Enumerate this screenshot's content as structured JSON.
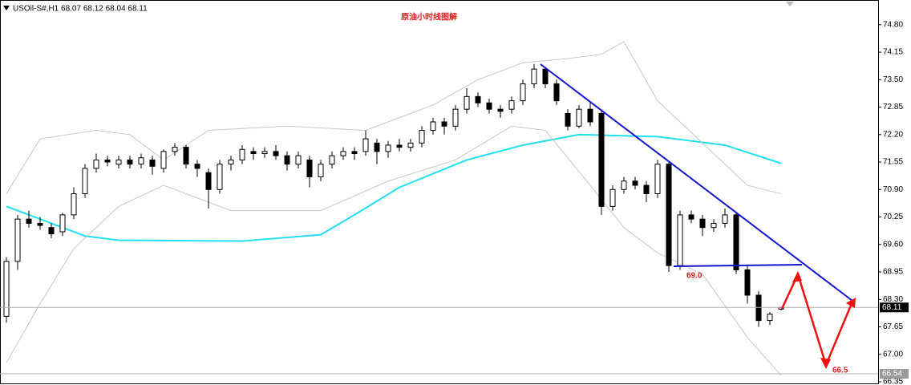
{
  "chart_data": {
    "type": "candlestick",
    "header": "USOil-S#,H1  68.07 68.12 68.04 68.11",
    "title": "原油小时线图解",
    "annotations": [
      "69.0",
      "66.5"
    ],
    "candles": [
      [
        67.9,
        69.3,
        67.75,
        69.2
      ],
      [
        69.2,
        70.3,
        69.0,
        70.2
      ],
      [
        70.2,
        70.4,
        70.0,
        70.1
      ],
      [
        70.1,
        70.25,
        69.95,
        70.05
      ],
      [
        70.0,
        70.1,
        69.75,
        69.85
      ],
      [
        69.9,
        70.35,
        69.8,
        70.3
      ],
      [
        70.3,
        70.95,
        70.2,
        70.8
      ],
      [
        70.8,
        71.5,
        70.7,
        71.4
      ],
      [
        71.4,
        71.75,
        71.3,
        71.6
      ],
      [
        71.6,
        71.7,
        71.45,
        71.55
      ],
      [
        71.5,
        71.7,
        71.4,
        71.6
      ],
      [
        71.6,
        71.7,
        71.4,
        71.5
      ],
      [
        71.5,
        71.75,
        71.4,
        71.65
      ],
      [
        71.6,
        71.7,
        71.25,
        71.45
      ],
      [
        71.4,
        71.85,
        71.3,
        71.8
      ],
      [
        71.8,
        72.0,
        71.7,
        71.9
      ],
      [
        71.9,
        71.95,
        71.4,
        71.5
      ],
      [
        71.5,
        71.6,
        71.2,
        71.4
      ],
      [
        71.3,
        71.4,
        70.45,
        70.9
      ],
      [
        70.9,
        71.6,
        70.8,
        71.5
      ],
      [
        71.5,
        71.7,
        71.35,
        71.6
      ],
      [
        71.6,
        71.95,
        71.5,
        71.85
      ],
      [
        71.8,
        71.9,
        71.6,
        71.75
      ],
      [
        71.75,
        71.9,
        71.65,
        71.8
      ],
      [
        71.8,
        71.95,
        71.6,
        71.7
      ],
      [
        71.7,
        71.8,
        71.35,
        71.5
      ],
      [
        71.5,
        71.8,
        71.4,
        71.7
      ],
      [
        71.6,
        71.7,
        70.95,
        71.2
      ],
      [
        71.2,
        71.6,
        71.1,
        71.5
      ],
      [
        71.5,
        71.8,
        71.4,
        71.7
      ],
      [
        71.7,
        71.9,
        71.6,
        71.8
      ],
      [
        71.8,
        71.9,
        71.6,
        71.75
      ],
      [
        71.8,
        72.3,
        71.7,
        72.1
      ],
      [
        72.0,
        72.1,
        71.5,
        71.8
      ],
      [
        71.8,
        72.05,
        71.65,
        71.95
      ],
      [
        71.95,
        72.1,
        71.8,
        71.9
      ],
      [
        71.9,
        72.1,
        71.8,
        72.0
      ],
      [
        72.0,
        72.4,
        71.9,
        72.3
      ],
      [
        72.3,
        72.6,
        72.2,
        72.5
      ],
      [
        72.5,
        72.6,
        72.2,
        72.4
      ],
      [
        72.4,
        72.9,
        72.3,
        72.8
      ],
      [
        72.8,
        73.3,
        72.7,
        73.1
      ],
      [
        73.1,
        73.2,
        72.85,
        72.95
      ],
      [
        72.95,
        73.05,
        72.7,
        72.8
      ],
      [
        72.8,
        72.9,
        72.6,
        72.75
      ],
      [
        72.8,
        73.1,
        72.7,
        73.0
      ],
      [
        73.0,
        73.5,
        72.9,
        73.4
      ],
      [
        73.4,
        73.87,
        73.3,
        73.75
      ],
      [
        73.75,
        73.8,
        73.3,
        73.4
      ],
      [
        73.4,
        73.5,
        72.9,
        73.0
      ],
      [
        72.7,
        72.8,
        72.3,
        72.4
      ],
      [
        72.4,
        72.9,
        72.35,
        72.8
      ],
      [
        72.8,
        72.95,
        72.4,
        72.5
      ],
      [
        72.7,
        72.8,
        70.3,
        70.5
      ],
      [
        70.5,
        71.0,
        70.4,
        70.9
      ],
      [
        70.9,
        71.2,
        70.8,
        71.1
      ],
      [
        71.1,
        71.2,
        70.9,
        71.0
      ],
      [
        71.0,
        71.1,
        70.6,
        70.8
      ],
      [
        70.8,
        71.6,
        70.7,
        71.5
      ],
      [
        71.5,
        71.55,
        68.95,
        69.1
      ],
      [
        69.1,
        70.4,
        69.0,
        70.3
      ],
      [
        70.3,
        70.4,
        70.1,
        70.2
      ],
      [
        70.2,
        70.3,
        69.8,
        70.0
      ],
      [
        70.0,
        70.2,
        69.9,
        70.1
      ],
      [
        70.1,
        70.45,
        70.0,
        70.3
      ],
      [
        70.3,
        70.35,
        68.9,
        69.0
      ],
      [
        69.0,
        69.1,
        68.2,
        68.4
      ],
      [
        68.4,
        68.5,
        67.65,
        67.8
      ],
      [
        67.8,
        68.0,
        67.7,
        67.95
      ],
      [
        68.07,
        68.12,
        68.04,
        68.11
      ]
    ],
    "lines": [
      {
        "color": "#22e0f0",
        "x": [
          0,
          7,
          10,
          21,
          28,
          31,
          35,
          41,
          46,
          51,
          58,
          64,
          69
        ],
        "values": [
          70.5,
          69.8,
          69.7,
          69.68,
          69.83,
          70.3,
          70.95,
          71.6,
          71.95,
          72.2,
          72.15,
          71.95,
          71.52
        ]
      },
      {
        "color": "#c8c8c8",
        "x": [
          0,
          3,
          8,
          11,
          14,
          18,
          25,
          32,
          38,
          42,
          46,
          50,
          53,
          55,
          58,
          62,
          66,
          69
        ],
        "values": [
          70.8,
          72.1,
          72.3,
          72.2,
          71.6,
          72.3,
          72.4,
          72.3,
          72.9,
          73.5,
          73.9,
          74.0,
          74.1,
          74.4,
          73.0,
          72.0,
          71.0,
          70.8
        ]
      },
      {
        "color": "#c8c8c8",
        "x": [
          0,
          3,
          6,
          10,
          14,
          20,
          28,
          34,
          40,
          45,
          48,
          52,
          55,
          58,
          62,
          66,
          69
        ],
        "values": [
          66.8,
          68.2,
          69.5,
          70.5,
          71.0,
          70.4,
          70.4,
          71.1,
          71.6,
          72.4,
          72.3,
          71.0,
          70.0,
          69.4,
          68.9,
          67.4,
          66.5
        ]
      }
    ],
    "ylim": [
      66.35,
      75.29
    ],
    "yticks": [
      {
        "value": 74.8,
        "label": "74.80"
      },
      {
        "value": 74.15,
        "label": "74.15"
      },
      {
        "value": 73.5,
        "label": "73.50"
      },
      {
        "value": 72.85,
        "label": "72.85"
      },
      {
        "value": 72.2,
        "label": "72.20"
      },
      {
        "value": 71.55,
        "label": "71.55"
      },
      {
        "value": 70.9,
        "label": "70.90"
      },
      {
        "value": 70.25,
        "label": "70.25"
      },
      {
        "value": 69.6,
        "label": "69.60"
      },
      {
        "value": 68.95,
        "label": "68.95"
      },
      {
        "value": 68.3,
        "label": "68.30"
      },
      {
        "value": 67.65,
        "label": "67.65"
      },
      {
        "value": 67.0,
        "label": "67.00"
      },
      {
        "value": 66.35,
        "label": "66.35"
      }
    ],
    "price_markers": [
      68.11,
      66.54
    ]
  }
}
